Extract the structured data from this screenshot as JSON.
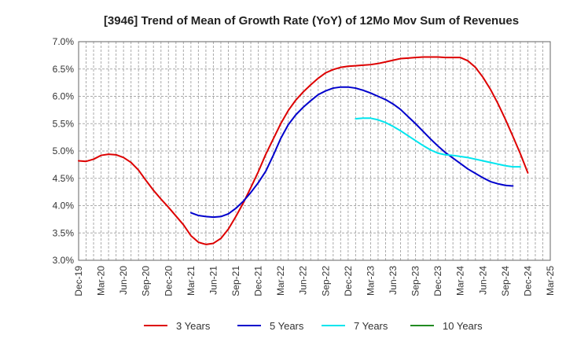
{
  "chart_data": {
    "type": "line",
    "title": "[3946]  Trend of Mean of Growth Rate (YoY) of 12Mo Mov Sum of Revenues",
    "xlabel": "",
    "ylabel": "",
    "ylim": [
      3.0,
      7.0
    ],
    "y_ticks": [
      "3.0%",
      "3.5%",
      "4.0%",
      "4.5%",
      "5.0%",
      "5.5%",
      "6.0%",
      "6.5%",
      "7.0%"
    ],
    "x_ticks": [
      "Dec-19",
      "Mar-20",
      "Jun-20",
      "Sep-20",
      "Dec-20",
      "Mar-21",
      "Jun-21",
      "Sep-21",
      "Dec-21",
      "Mar-22",
      "Jun-22",
      "Sep-22",
      "Dec-22",
      "Mar-23",
      "Jun-23",
      "Sep-23",
      "Dec-23",
      "Mar-24",
      "Jun-24",
      "Sep-24",
      "Dec-24",
      "Mar-25"
    ],
    "x_unit": "months since Dec-19",
    "grid": true,
    "legend_position": "bottom",
    "series": [
      {
        "name": "3 Years",
        "color": "#dd0000",
        "points": [
          [
            0,
            4.82
          ],
          [
            1,
            4.81
          ],
          [
            2,
            4.85
          ],
          [
            3,
            4.92
          ],
          [
            4,
            4.94
          ],
          [
            5,
            4.93
          ],
          [
            6,
            4.88
          ],
          [
            7,
            4.79
          ],
          [
            8,
            4.65
          ],
          [
            9,
            4.46
          ],
          [
            10,
            4.28
          ],
          [
            11,
            4.12
          ],
          [
            12,
            3.97
          ],
          [
            13,
            3.81
          ],
          [
            14,
            3.65
          ],
          [
            15,
            3.45
          ],
          [
            16,
            3.33
          ],
          [
            17,
            3.29
          ],
          [
            18,
            3.31
          ],
          [
            19,
            3.4
          ],
          [
            20,
            3.57
          ],
          [
            21,
            3.8
          ],
          [
            22,
            4.05
          ],
          [
            23,
            4.33
          ],
          [
            24,
            4.62
          ],
          [
            25,
            4.94
          ],
          [
            26,
            5.22
          ],
          [
            27,
            5.5
          ],
          [
            28,
            5.74
          ],
          [
            29,
            5.93
          ],
          [
            30,
            6.08
          ],
          [
            31,
            6.21
          ],
          [
            32,
            6.33
          ],
          [
            33,
            6.43
          ],
          [
            34,
            6.49
          ],
          [
            35,
            6.53
          ],
          [
            36,
            6.55
          ],
          [
            37,
            6.56
          ],
          [
            38,
            6.57
          ],
          [
            39,
            6.58
          ],
          [
            40,
            6.6
          ],
          [
            41,
            6.63
          ],
          [
            42,
            6.66
          ],
          [
            43,
            6.69
          ],
          [
            44,
            6.7
          ],
          [
            45,
            6.71
          ],
          [
            46,
            6.72
          ],
          [
            47,
            6.72
          ],
          [
            48,
            6.72
          ],
          [
            49,
            6.71
          ],
          [
            50,
            6.71
          ],
          [
            51,
            6.71
          ],
          [
            52,
            6.65
          ],
          [
            53,
            6.53
          ],
          [
            54,
            6.35
          ],
          [
            55,
            6.13
          ],
          [
            56,
            5.87
          ],
          [
            57,
            5.58
          ],
          [
            58,
            5.27
          ],
          [
            59,
            4.95
          ],
          [
            60,
            4.6
          ]
        ]
      },
      {
        "name": "5 Years",
        "color": "#0000cc",
        "points": [
          [
            15,
            3.87
          ],
          [
            16,
            3.82
          ],
          [
            17,
            3.8
          ],
          [
            18,
            3.79
          ],
          [
            19,
            3.8
          ],
          [
            20,
            3.85
          ],
          [
            21,
            3.95
          ],
          [
            22,
            4.08
          ],
          [
            23,
            4.24
          ],
          [
            24,
            4.42
          ],
          [
            25,
            4.63
          ],
          [
            26,
            4.92
          ],
          [
            27,
            5.23
          ],
          [
            28,
            5.48
          ],
          [
            29,
            5.66
          ],
          [
            30,
            5.8
          ],
          [
            31,
            5.92
          ],
          [
            32,
            6.03
          ],
          [
            33,
            6.1
          ],
          [
            34,
            6.15
          ],
          [
            35,
            6.17
          ],
          [
            36,
            6.17
          ],
          [
            37,
            6.15
          ],
          [
            38,
            6.11
          ],
          [
            39,
            6.06
          ],
          [
            40,
            6.0
          ],
          [
            41,
            5.94
          ],
          [
            42,
            5.86
          ],
          [
            43,
            5.76
          ],
          [
            44,
            5.63
          ],
          [
            45,
            5.5
          ],
          [
            46,
            5.36
          ],
          [
            47,
            5.22
          ],
          [
            48,
            5.09
          ],
          [
            49,
            4.97
          ],
          [
            50,
            4.87
          ],
          [
            51,
            4.77
          ],
          [
            52,
            4.67
          ],
          [
            53,
            4.59
          ],
          [
            54,
            4.51
          ],
          [
            55,
            4.44
          ],
          [
            56,
            4.4
          ],
          [
            57,
            4.37
          ],
          [
            58,
            4.36
          ]
        ]
      },
      {
        "name": "7 Years",
        "color": "#00e5ee",
        "points": [
          [
            37,
            5.59
          ],
          [
            38,
            5.6
          ],
          [
            39,
            5.6
          ],
          [
            40,
            5.57
          ],
          [
            41,
            5.52
          ],
          [
            42,
            5.45
          ],
          [
            43,
            5.37
          ],
          [
            44,
            5.28
          ],
          [
            45,
            5.19
          ],
          [
            46,
            5.1
          ],
          [
            47,
            5.02
          ],
          [
            48,
            4.96
          ],
          [
            49,
            4.93
          ],
          [
            50,
            4.92
          ],
          [
            51,
            4.9
          ],
          [
            52,
            4.88
          ],
          [
            53,
            4.85
          ],
          [
            54,
            4.82
          ],
          [
            55,
            4.79
          ],
          [
            56,
            4.76
          ],
          [
            57,
            4.73
          ],
          [
            58,
            4.71
          ],
          [
            59,
            4.71
          ]
        ]
      },
      {
        "name": "10 Years",
        "color": "#228b22",
        "points": []
      }
    ]
  }
}
